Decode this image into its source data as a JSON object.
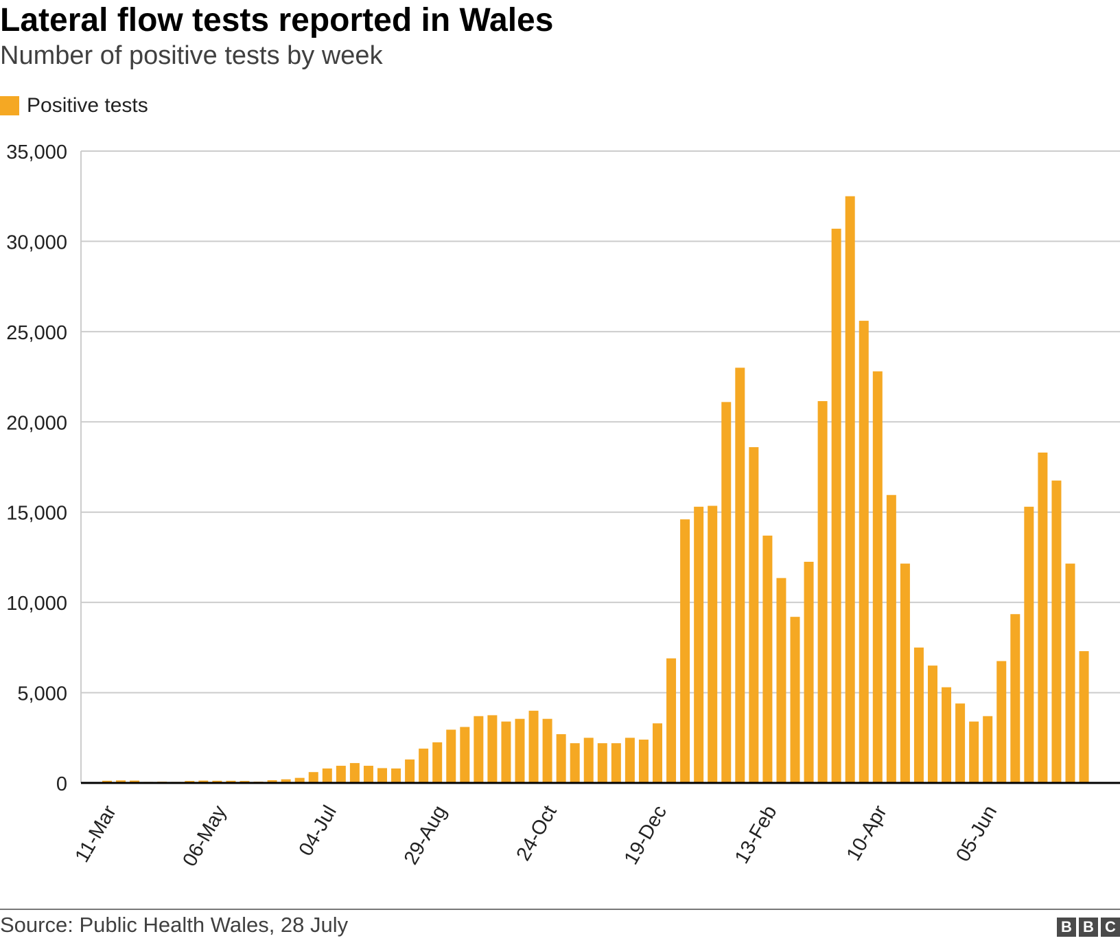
{
  "colors": {
    "bar": "#f5a823",
    "grid": "#cccccc",
    "baseline": "#000000",
    "text": "#222222"
  },
  "footer": {
    "source": "Source: Public Health Wales, 28 July",
    "logo": [
      "B",
      "B",
      "C"
    ]
  },
  "chart_data": {
    "type": "bar",
    "title": "Lateral flow tests reported in Wales",
    "subtitle": "Number of positive tests by week",
    "legend": {
      "position": "top-left",
      "entries": [
        "Positive tests"
      ]
    },
    "grid": true,
    "ylim": [
      0,
      35000
    ],
    "yticks": [
      0,
      5000,
      10000,
      15000,
      20000,
      25000,
      30000,
      35000
    ],
    "ytick_labels": [
      "0",
      "5,000",
      "10,000",
      "15,000",
      "20,000",
      "25,000",
      "30,000",
      "35,000"
    ],
    "xtick_labels": [
      "11-Mar",
      "06-May",
      "04-Jul",
      "29-Aug",
      "24-Oct",
      "19-Dec",
      "13-Feb",
      "10-Apr",
      "05-Jun"
    ],
    "xtick_indices": [
      0,
      8,
      16,
      24,
      32,
      40,
      48,
      56,
      64
    ],
    "series": [
      {
        "name": "Positive tests",
        "values": [
          120,
          140,
          130,
          60,
          70,
          60,
          110,
          130,
          120,
          120,
          110,
          70,
          150,
          200,
          280,
          600,
          800,
          950,
          1100,
          950,
          820,
          800,
          1300,
          1900,
          2250,
          2950,
          3100,
          3700,
          3750,
          3400,
          3550,
          4000,
          3550,
          2700,
          2200,
          2500,
          2200,
          2200,
          2500,
          2400,
          3300,
          6900,
          14600,
          15300,
          15350,
          21100,
          23000,
          18600,
          13700,
          11350,
          9200,
          12250,
          21150,
          30700,
          32500,
          25600,
          22800,
          15950,
          12150,
          7500,
          6500,
          5300,
          4400,
          3400,
          3700,
          6750,
          9350,
          15300,
          18300,
          16750,
          12150,
          7300
        ]
      }
    ]
  }
}
